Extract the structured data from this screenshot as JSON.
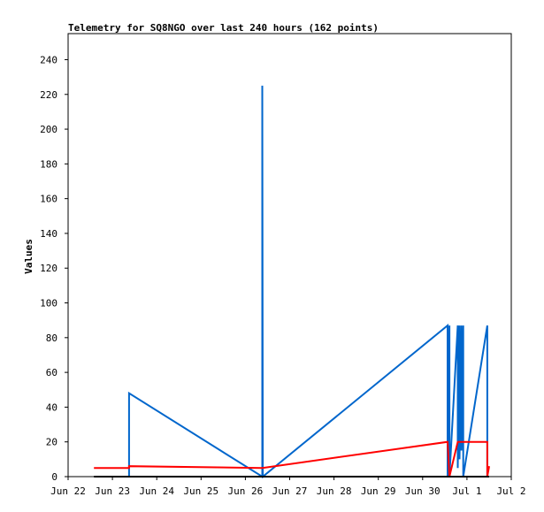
{
  "chart_data": {
    "type": "line",
    "title": "Telemetry for SQ8NGO over last 240 hours (162 points)",
    "xlabel": "",
    "ylabel": "Values",
    "x_tick_labels": [
      "Jun 22",
      "Jun 23",
      "Jun 24",
      "Jun 25",
      "Jun 26",
      "Jun 27",
      "Jun 28",
      "Jun 29",
      "Jun 30",
      "Jul 1",
      "Jul 2"
    ],
    "y_ticks": [
      0,
      20,
      40,
      60,
      80,
      100,
      120,
      140,
      160,
      180,
      200,
      220,
      240
    ],
    "xlim": [
      "Jun 22",
      "Jul 2"
    ],
    "ylim": [
      0,
      255
    ],
    "grid": false,
    "legend": "none",
    "colors": {
      "series1": "#0066cc",
      "series2": "#ff0000",
      "series3": "#000000"
    },
    "series": [
      {
        "color": "#0066cc",
        "points": [
          [
            "Jun 23 09:00",
            0
          ],
          [
            "Jun 23 09:00",
            48
          ],
          [
            "Jun 26 09:10",
            0
          ],
          [
            "Jun 26 09:10",
            225
          ],
          [
            "Jun 26 09:25",
            0
          ],
          [
            "Jun 30 13:30",
            87
          ],
          [
            "Jun 30 13:30",
            0
          ],
          [
            "Jun 30 14:30",
            87
          ],
          [
            "Jun 30 14:30",
            0
          ],
          [
            "Jun 30 19:00",
            87
          ],
          [
            "Jun 30 19:00",
            5
          ],
          [
            "Jun 30 20:00",
            87
          ],
          [
            "Jun 30 20:00",
            10
          ],
          [
            "Jun 30 21:00",
            87
          ],
          [
            "Jun 30 21:00",
            15
          ],
          [
            "Jun 30 22:00",
            87
          ],
          [
            "Jun 30 22:00",
            0
          ],
          [
            "Jul 1 11:00",
            87
          ],
          [
            "Jul 1 11:00",
            0
          ]
        ]
      },
      {
        "color": "#ff0000",
        "points": [
          [
            "Jun 22 14:00",
            5
          ],
          [
            "Jun 23 09:00",
            5
          ],
          [
            "Jun 23 09:00",
            6
          ],
          [
            "Jun 26 09:10",
            5
          ],
          [
            "Jun 30 13:30",
            20
          ],
          [
            "Jun 30 14:30",
            0
          ],
          [
            "Jun 30 19:00",
            20
          ],
          [
            "Jun 30 22:00",
            20
          ],
          [
            "Jul 1 11:00",
            20
          ],
          [
            "Jul 1 11:00",
            0
          ],
          [
            "Jul 1 12:00",
            6
          ]
        ]
      },
      {
        "color": "#000000",
        "points": [
          [
            "Jun 22 14:00",
            0
          ],
          [
            "Jul 1 12:00",
            0
          ]
        ]
      }
    ]
  }
}
